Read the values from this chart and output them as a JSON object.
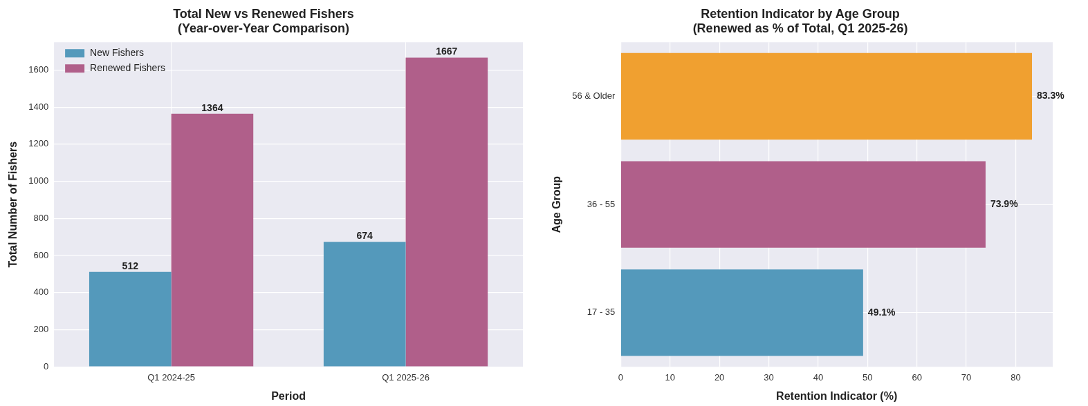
{
  "chart_data": [
    {
      "type": "bar",
      "title": "Total New vs Renewed Fishers",
      "subtitle": "(Year-over-Year Comparison)",
      "xlabel": "Period",
      "ylabel": "Total Number of Fishers",
      "categories": [
        "Q1 2024-25",
        "Q1 2025-26"
      ],
      "series": [
        {
          "name": "New Fishers",
          "color": "#5499bb",
          "values": [
            512,
            674
          ]
        },
        {
          "name": "Renewed Fishers",
          "color": "#b05f8a",
          "values": [
            1364,
            1667
          ]
        }
      ],
      "ylim": [
        0,
        1750
      ],
      "yticks": [
        0,
        200,
        400,
        600,
        800,
        1000,
        1200,
        1400,
        1600
      ],
      "grid": true,
      "legend": "top left",
      "data_labels": true
    },
    {
      "type": "bar",
      "orientation": "horizontal",
      "title": "Retention Indicator by Age Group",
      "subtitle": "(Renewed as % of Total, Q1 2025-26)",
      "xlabel": "Retention Indicator (%)",
      "ylabel": "Age Group",
      "categories": [
        "56 & Older",
        "36 - 55",
        "17 - 35"
      ],
      "values": [
        83.3,
        73.9,
        49.1
      ],
      "colors": [
        "#f0a030",
        "#b05f8a",
        "#5499bb"
      ],
      "value_labels": [
        "83.3%",
        "73.9%",
        "49.1%"
      ],
      "xlim": [
        0,
        87.5
      ],
      "xticks": [
        0,
        10,
        20,
        30,
        40,
        50,
        60,
        70,
        80
      ],
      "grid": true
    }
  ]
}
